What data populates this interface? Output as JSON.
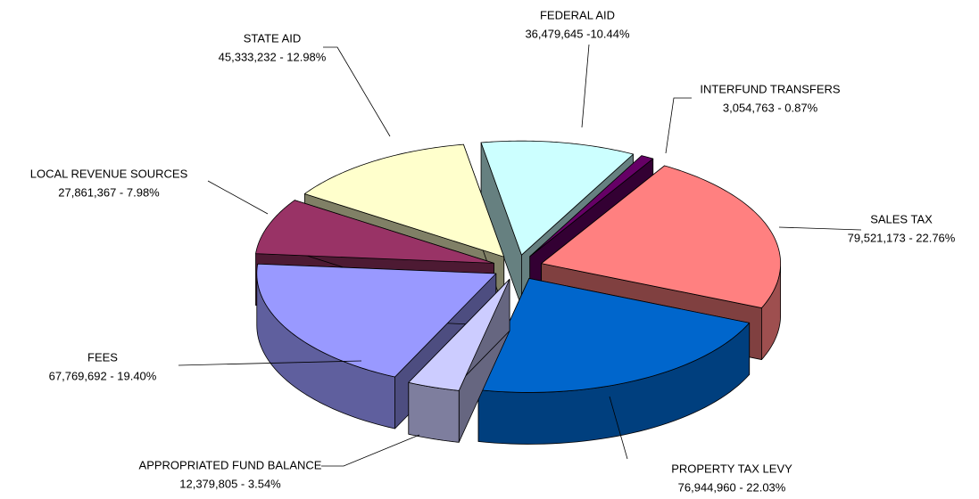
{
  "chart_data": {
    "type": "pie3d",
    "categories": [
      "SALES TAX",
      "PROPERTY TAX LEVY",
      "APPROPRIATED FUND BALANCE",
      "FEES",
      "LOCAL REVENUE SOURCES",
      "STATE AID",
      "FEDERAL AID",
      "INTERFUND TRANSFERS"
    ],
    "values": [
      79521173,
      76944960,
      12379805,
      67769692,
      27861367,
      45333232,
      36479645,
      3054763
    ],
    "value_labels": [
      "79,521,173 - 22.76%",
      "76,944,960 - 22.03%",
      "12,379,805 - 3.54%",
      "67,769,692 - 19.40%",
      "27,861,367 - 7.98%",
      "45,333,232 - 12.98%",
      "36,479,645 -10.44%",
      "3,054,763 - 0.87%"
    ],
    "colors": [
      "#ff8080",
      "#0066cc",
      "#ccccff",
      "#9999ff",
      "#993366",
      "#ffffcc",
      "#ccffff",
      "#660066"
    ]
  }
}
